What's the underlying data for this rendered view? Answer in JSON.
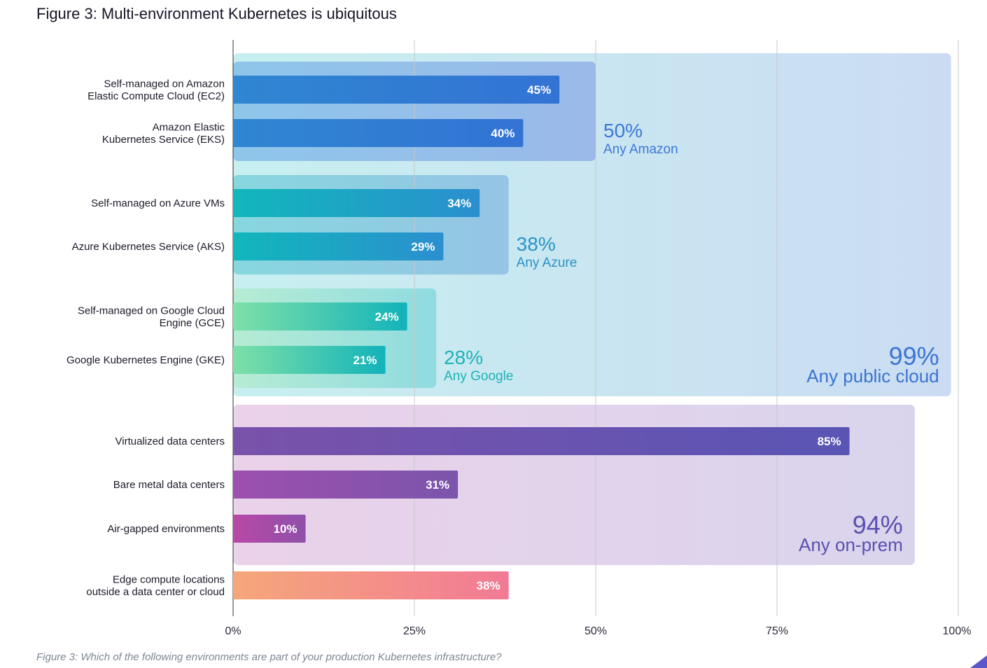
{
  "figure": {
    "title": "Figure 3: Multi-environment Kubernetes is ubiquitous",
    "caption": "Figure 3: Which of the following environments are part of your production Kubernetes infrastructure?"
  },
  "chart_data": {
    "type": "bar",
    "orientation": "horizontal",
    "title": "Figure 3: Multi-environment Kubernetes is ubiquitous",
    "xlabel": "",
    "ylabel": "",
    "xlim": [
      0,
      100
    ],
    "x_ticks": [
      "0%",
      "25%",
      "50%",
      "75%",
      "100%"
    ],
    "grid": true,
    "categories": [
      "Self-managed on Amazon Elastic Compute Cloud (EC2)",
      "Amazon Elastic Kubernetes Service (EKS)",
      "Self-managed on Azure VMs",
      "Azure Kubernetes Service (AKS)",
      "Self-managed on Google Cloud Engine (GCE)",
      "Google Kubernetes Engine (GKE)",
      "Virtualized data centers",
      "Bare metal data centers",
      "Air-gapped environments",
      "Edge compute locations outside a data center or cloud"
    ],
    "bars": [
      {
        "label": [
          "Self-managed on Amazon",
          "Elastic Compute Cloud (EC2)"
        ],
        "value": 45,
        "value_label": "45%",
        "color_start": "#2f86d2",
        "color_end": "#3373d4"
      },
      {
        "label": [
          "Amazon Elastic",
          "Kubernetes Service (EKS)"
        ],
        "value": 40,
        "value_label": "40%",
        "color_start": "#2f86d2",
        "color_end": "#3373d4"
      },
      {
        "label": [
          "Self-managed on Azure VMs"
        ],
        "value": 34,
        "value_label": "34%",
        "color_start": "#11b7bb",
        "color_end": "#2b8fcf"
      },
      {
        "label": [
          "Azure Kubernetes Service (AKS)"
        ],
        "value": 29,
        "value_label": "29%",
        "color_start": "#11b7bb",
        "color_end": "#2b8fcf"
      },
      {
        "label": [
          "Self-managed on Google Cloud",
          "Engine (GCE)"
        ],
        "value": 24,
        "value_label": "24%",
        "color_start": "#7ee0a8",
        "color_end": "#12b3ba"
      },
      {
        "label": [
          "Google Kubernetes Engine (GKE)"
        ],
        "value": 21,
        "value_label": "21%",
        "color_start": "#7ee0a8",
        "color_end": "#12b3ba"
      },
      {
        "label": [
          "Virtualized data centers"
        ],
        "value": 85,
        "value_label": "85%",
        "color_start": "#7a52aa",
        "color_end": "#5a55b4"
      },
      {
        "label": [
          "Bare metal data centers"
        ],
        "value": 31,
        "value_label": "31%",
        "color_start": "#9d4fae",
        "color_end": "#7b55ab"
      },
      {
        "label": [
          "Air-gapped environments"
        ],
        "value": 10,
        "value_label": "10%",
        "color_start": "#b948a6",
        "color_end": "#8e50ab"
      },
      {
        "label": [
          "Edge compute locations",
          "outside a data center or cloud"
        ],
        "value": 38,
        "value_label": "38%",
        "color_start": "#f5a77a",
        "color_end": "#f27a95"
      }
    ],
    "groups": [
      {
        "value": 99,
        "value_label": "99%",
        "name": "Any public cloud",
        "first_bar": 0,
        "last_bar": 5,
        "text_color": "#3a74d2",
        "color_start": "#c7eff0",
        "color_end": "#cbdcf2"
      },
      {
        "value": 50,
        "value_label": "50%",
        "name": "Any Amazon",
        "first_bar": 0,
        "last_bar": 1,
        "text_color": "#3c78d6",
        "color_start": "#8ec6ea",
        "color_end": "#9bb9e9"
      },
      {
        "value": 38,
        "value_label": "38%",
        "name": "Any Azure",
        "first_bar": 2,
        "last_bar": 3,
        "text_color": "#2a93c8",
        "color_start": "#87d7df",
        "color_end": "#95c4e4"
      },
      {
        "value": 28,
        "value_label": "28%",
        "name": "Any Google",
        "first_bar": 4,
        "last_bar": 5,
        "text_color": "#1fb2b8",
        "color_start": "#b6ecd4",
        "color_end": "#8fdbe0"
      },
      {
        "value": 94,
        "value_label": "94%",
        "name": "Any on-prem",
        "first_bar": 6,
        "last_bar": 8,
        "text_color": "#5a4fb0",
        "color_start": "#ead2ea",
        "color_end": "#d9d4ec"
      }
    ],
    "colors": {
      "label_text": "#1c1c2b",
      "tick_text": "#2a2a3a",
      "grid": "#c8c8c8",
      "axis": "#333333",
      "bar_text": "#ffffff"
    }
  }
}
